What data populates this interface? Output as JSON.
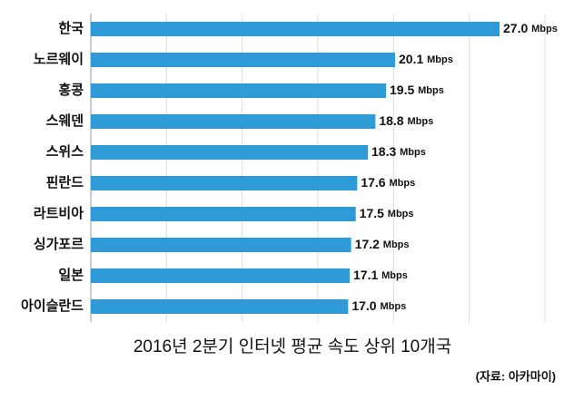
{
  "chart_data": {
    "type": "hbar",
    "title": "2016년 2분기 인터넷 평균 속도 상위 10개국",
    "source": "(자료: 아카마이)",
    "categories": [
      "한국",
      "노르웨이",
      "홍콩",
      "스웨덴",
      "스위스",
      "핀란드",
      "라트비아",
      "싱가포르",
      "일본",
      "아이슬란드"
    ],
    "values": [
      27.0,
      20.1,
      19.5,
      18.8,
      18.3,
      17.6,
      17.5,
      17.2,
      17.1,
      17.0
    ],
    "value_labels": [
      "27.0",
      "20.1",
      "19.5",
      "18.8",
      "18.3",
      "17.6",
      "17.5",
      "17.2",
      "17.1",
      "17.0"
    ],
    "unit": "Mbps",
    "color": "#2e9ad6",
    "xlim": [
      0,
      30
    ],
    "xticks": [
      0,
      5,
      10,
      15,
      20,
      25,
      30
    ],
    "grid": true
  }
}
